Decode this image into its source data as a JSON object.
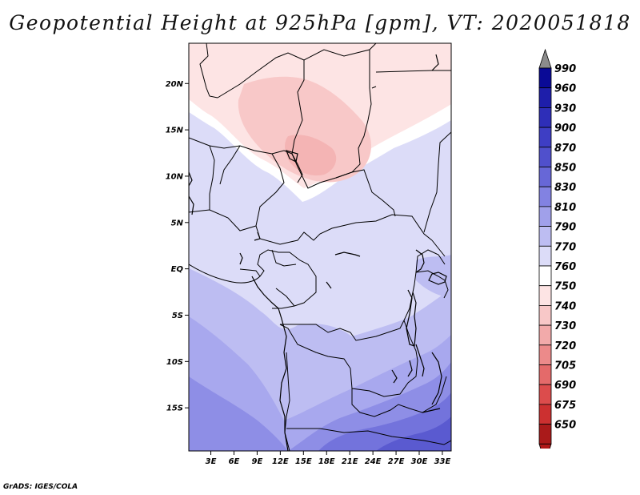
{
  "title": "Geopotential Height at 925hPa [gpm], VT: 2020051818",
  "footer": "GrADS: IGES/COLA",
  "chart_data": {
    "type": "contour-map",
    "variable": "Geopotential Height",
    "level": "925hPa",
    "units": "gpm",
    "valid_time": "2020051818",
    "lon_range": [
      0,
      34
    ],
    "lat_range": [
      -20,
      24
    ],
    "xticks": [
      {
        "value": 3,
        "label": "3E"
      },
      {
        "value": 6,
        "label": "6E"
      },
      {
        "value": 9,
        "label": "9E"
      },
      {
        "value": 12,
        "label": "12E"
      },
      {
        "value": 15,
        "label": "15E"
      },
      {
        "value": 18,
        "label": "18E"
      },
      {
        "value": 21,
        "label": "21E"
      },
      {
        "value": 24,
        "label": "24E"
      },
      {
        "value": 27,
        "label": "27E"
      },
      {
        "value": 30,
        "label": "30E"
      },
      {
        "value": 33,
        "label": "33E"
      }
    ],
    "yticks": [
      {
        "value": 20,
        "label": "20N"
      },
      {
        "value": 15,
        "label": "15N"
      },
      {
        "value": 10,
        "label": "10N"
      },
      {
        "value": 5,
        "label": "5N"
      },
      {
        "value": 0,
        "label": "EQ"
      },
      {
        "value": -5,
        "label": "5S"
      },
      {
        "value": -10,
        "label": "10S"
      },
      {
        "value": -15,
        "label": "15S"
      }
    ],
    "legend": [
      {
        "label": "990",
        "color": "#0a0a96"
      },
      {
        "label": "960",
        "color": "#1e1eaa"
      },
      {
        "label": "930",
        "color": "#2e2eb8"
      },
      {
        "label": "900",
        "color": "#3e3ec4"
      },
      {
        "label": "870",
        "color": "#5050cc"
      },
      {
        "label": "850",
        "color": "#6767d7"
      },
      {
        "label": "830",
        "color": "#8282e2"
      },
      {
        "label": "810",
        "color": "#a0a0ea"
      },
      {
        "label": "790",
        "color": "#bdbdf2"
      },
      {
        "label": "770",
        "color": "#dcdcf8"
      },
      {
        "label": "760",
        "color": "#ffffff"
      },
      {
        "label": "750",
        "color": "#fde4e4"
      },
      {
        "label": "740",
        "color": "#f8c8c8"
      },
      {
        "label": "730",
        "color": "#f2aaaa"
      },
      {
        "label": "720",
        "color": "#ec8a8a"
      },
      {
        "label": "705",
        "color": "#e46a6a"
      },
      {
        "label": "690",
        "color": "#dc4c4c"
      },
      {
        "label": "675",
        "color": "#cc3030"
      },
      {
        "label": "650",
        "color": "#aa1a1a"
      }
    ],
    "arrow_top_color": "#8c8c8c",
    "arrow_bottom_color": "#b01818"
  }
}
